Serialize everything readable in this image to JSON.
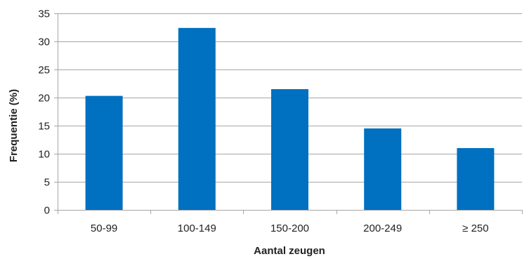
{
  "chart_data": {
    "type": "bar",
    "categories": [
      "50-99",
      "100-149",
      "150-200",
      "200-249",
      "≥ 250"
    ],
    "values": [
      20.3,
      32.4,
      21.5,
      14.5,
      11.0
    ],
    "xlabel": "Aantal zeugen",
    "ylabel": "Frequentie (%)",
    "ylim": [
      0,
      35
    ],
    "yticks": [
      0,
      5,
      10,
      15,
      20,
      25,
      30,
      35
    ],
    "grid": true,
    "legend": "none",
    "colors": {
      "bar": "#0070C0",
      "grid": "#A6A6A6",
      "axis": "#A6A6A6"
    }
  }
}
